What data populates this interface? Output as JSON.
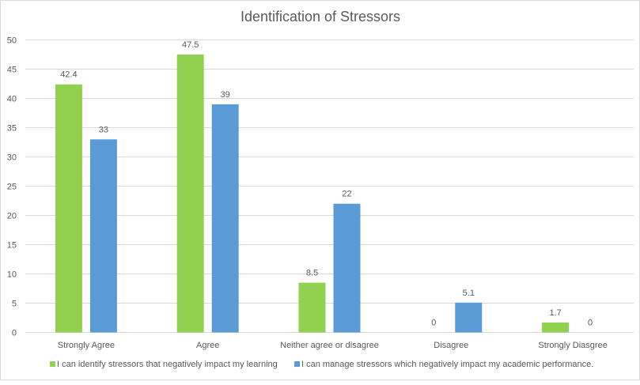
{
  "chart_data": {
    "type": "bar",
    "title": "Identification of Stressors",
    "categories": [
      "Strongly Agree",
      "Agree",
      "Neither agree or disagree",
      "Disagree",
      "Strongly Diasgree"
    ],
    "series": [
      {
        "name": "I can identify stressors that negatively impact my learning",
        "color": "#92d050",
        "values": [
          42.4,
          47.5,
          8.5,
          0,
          1.7
        ],
        "labels": [
          "42.4",
          "47.5",
          "8.5",
          "0",
          "1.7"
        ]
      },
      {
        "name": "I can manage stressors which negatively impact my academic performance.",
        "color": "#5b9bd5",
        "values": [
          33,
          39,
          22,
          5.1,
          0
        ],
        "labels": [
          "33",
          "39",
          "22",
          "5.1",
          "0"
        ]
      }
    ],
    "ylim": [
      0,
      50
    ],
    "yticks": [
      "0",
      "5",
      "10",
      "15",
      "20",
      "25",
      "30",
      "35",
      "40",
      "45",
      "50"
    ],
    "xlabel": "",
    "ylabel": "",
    "grid": true,
    "legend": "bottom"
  }
}
